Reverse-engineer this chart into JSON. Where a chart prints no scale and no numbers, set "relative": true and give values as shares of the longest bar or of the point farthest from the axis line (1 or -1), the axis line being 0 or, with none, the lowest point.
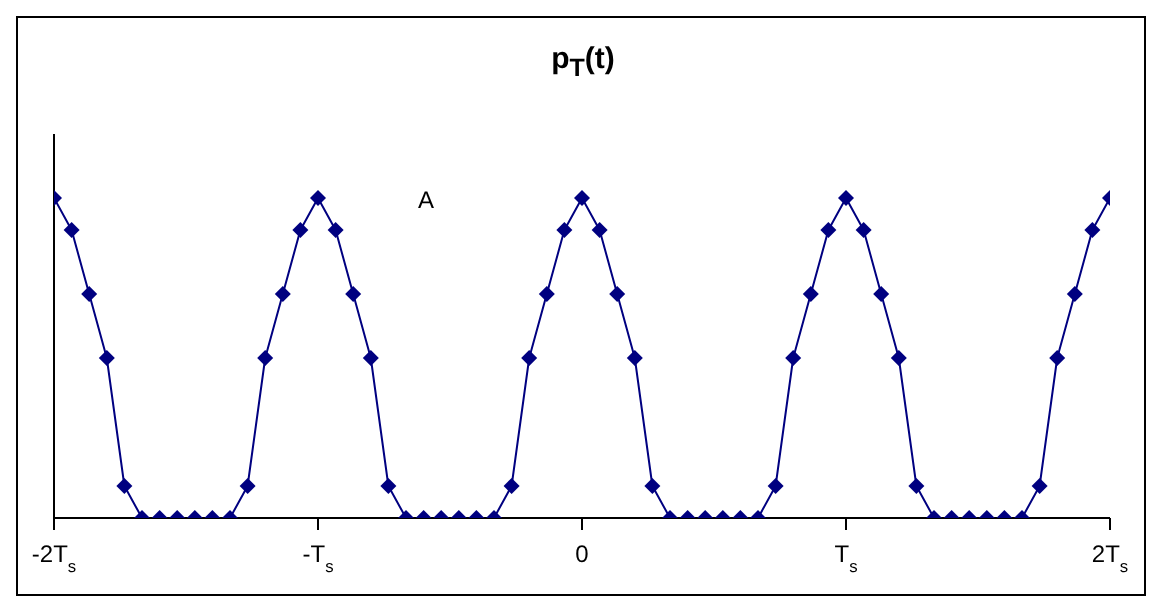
{
  "chart_data": {
    "type": "line",
    "title": "p$_{T}$(t)",
    "relative": true,
    "marker": "diamond",
    "line_style": "solid",
    "grid": false,
    "legend": false,
    "categories": [
      "-2T$_{s}$",
      null,
      null,
      null,
      null,
      null,
      null,
      null,
      null,
      null,
      null,
      null,
      null,
      null,
      null,
      "-T$_{s}$",
      null,
      null,
      null,
      null,
      null,
      null,
      null,
      null,
      null,
      null,
      null,
      null,
      null,
      null,
      "0",
      null,
      null,
      null,
      null,
      null,
      null,
      null,
      null,
      null,
      null,
      null,
      null,
      null,
      null,
      "T$_{s}$",
      null,
      null,
      null,
      null,
      null,
      null,
      null,
      null,
      null,
      null,
      null,
      null,
      null,
      null,
      "2T$_{s}$"
    ],
    "series": [
      {
        "color": "#000080",
        "values": [
          1,
          0.9,
          0.7,
          0.5,
          0.1,
          0,
          0,
          0,
          0,
          0,
          0,
          0.1,
          0.5,
          0.7,
          0.9,
          1,
          0.9,
          0.7,
          0.5,
          0.1,
          0,
          0,
          0,
          0,
          0,
          0,
          0.1,
          0.5,
          0.7,
          0.9,
          1,
          0.9,
          0.7,
          0.5,
          0.1,
          0,
          0,
          0,
          0,
          0,
          0,
          0.1,
          0.5,
          0.7,
          0.9,
          1,
          0.9,
          0.7,
          0.5,
          0.1,
          0,
          0,
          0,
          0,
          0,
          0,
          0.1,
          0.5,
          0.7,
          0.9,
          1
        ]
      }
    ],
    "annotations": [
      "A"
    ]
  }
}
